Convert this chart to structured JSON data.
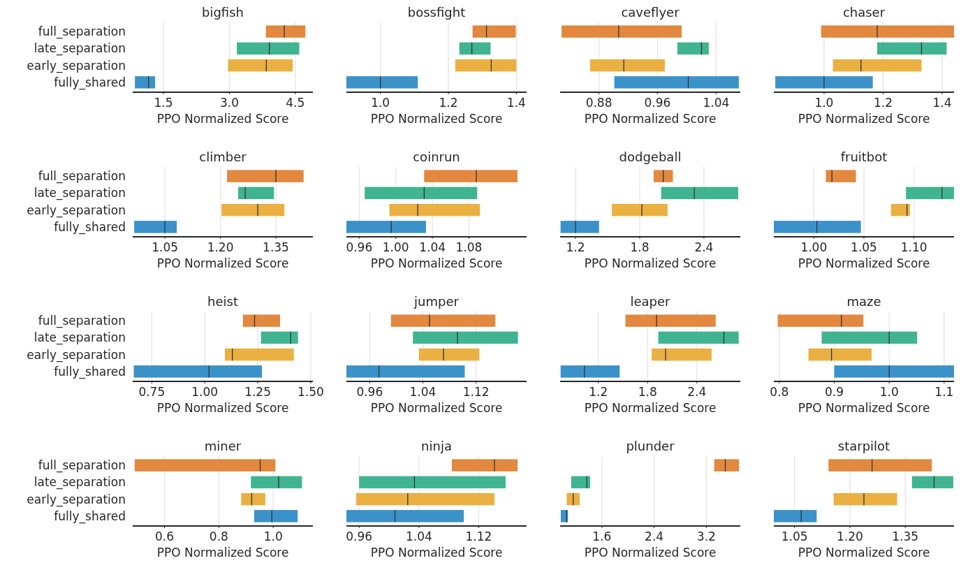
{
  "chart_data": [
    {
      "type": "box",
      "title": "bigfish",
      "xlabel": "PPO Normalized Score",
      "orientation": "horizontal",
      "grid": "x",
      "categories": [
        "full_separation",
        "late_separation",
        "early_separation",
        "fully_shared"
      ],
      "colors": [
        "#e2883f",
        "#40b491",
        "#ebb042",
        "#3b92c8"
      ],
      "xlim": [
        0.8,
        4.9
      ],
      "xticks": [
        1.5,
        {
          "value": 3,
          "label": "3.0"
        },
        4.5
      ],
      "boxes": [
        {
          "low": 3.83,
          "q1": 3.83,
          "median": 4.25,
          "q3": 4.73,
          "high": 4.73
        },
        {
          "low": 3.17,
          "q1": 3.17,
          "median": 3.91,
          "q3": 4.59,
          "high": 4.59
        },
        {
          "low": 2.97,
          "q1": 2.97,
          "median": 3.84,
          "q3": 4.44,
          "high": 4.44
        },
        {
          "low": 0.85,
          "q1": 0.85,
          "median": 1.16,
          "q3": 1.31,
          "high": 1.31
        }
      ]
    },
    {
      "type": "box",
      "title": "bossfight",
      "xlabel": "PPO Normalized Score",
      "orientation": "horizontal",
      "grid": "x",
      "tick_labels": "x",
      "categories": [
        null,
        null,
        null,
        null
      ],
      "colors": [
        "#e2883f",
        "#40b491",
        "#ebb042",
        "#3b92c8"
      ],
      "xlim": [
        0.9,
        1.43
      ],
      "xticks": [
        {
          "value": 1,
          "label": "1.0"
        },
        1.2,
        1.4
      ],
      "boxes": [
        {
          "low": 1.271,
          "q1": 1.271,
          "median": 1.312,
          "q3": 1.398,
          "high": 1.398
        },
        {
          "low": 1.232,
          "q1": 1.232,
          "median": 1.269,
          "q3": 1.324,
          "high": 1.324
        },
        {
          "low": 1.22,
          "q1": 1.22,
          "median": 1.326,
          "q3": 1.4,
          "high": 1.4
        },
        {
          "low": 0.9,
          "q1": 0.9,
          "median": 1.0,
          "q3": 1.11,
          "high": 1.11
        }
      ]
    },
    {
      "type": "box",
      "title": "caveflyer",
      "xlabel": "PPO Normalized Score",
      "orientation": "horizontal",
      "grid": "x",
      "tick_labels": "x",
      "categories": [
        null,
        null,
        null,
        null
      ],
      "colors": [
        "#e2883f",
        "#40b491",
        "#ebb042",
        "#3b92c8"
      ],
      "xlim": [
        0.827,
        1.073
      ],
      "xticks": [
        0.88,
        0.96,
        1.04
      ],
      "boxes": [
        {
          "low": 0.829,
          "q1": 0.829,
          "median": 0.907,
          "q3": 0.993,
          "high": 0.993
        },
        {
          "low": 0.987,
          "q1": 0.987,
          "median": 1.02,
          "q3": 1.03,
          "high": 1.03
        },
        {
          "low": 0.868,
          "q1": 0.868,
          "median": 0.914,
          "q3": 0.97,
          "high": 0.97
        },
        {
          "low": 0.901,
          "q1": 0.901,
          "median": 1.002,
          "q3": 1.071,
          "high": 1.071
        }
      ]
    },
    {
      "type": "box",
      "title": "chaser",
      "xlabel": "PPO Normalized Score",
      "orientation": "horizontal",
      "grid": "x",
      "tick_labels": "x",
      "categories": [
        null,
        null,
        null,
        null
      ],
      "colors": [
        "#e2883f",
        "#40b491",
        "#ebb042",
        "#3b92c8"
      ],
      "xlim": [
        0.83,
        1.44
      ],
      "xticks": [
        {
          "value": 1,
          "label": "1.0"
        },
        1.2,
        1.4
      ],
      "boxes": [
        {
          "low": 0.99,
          "q1": 0.99,
          "median": 1.18,
          "q3": 1.44,
          "high": 1.44
        },
        {
          "low": 1.18,
          "q1": 1.18,
          "median": 1.33,
          "q3": 1.415,
          "high": 1.415
        },
        {
          "low": 1.03,
          "q1": 1.03,
          "median": 1.125,
          "q3": 1.33,
          "high": 1.33
        },
        {
          "low": 0.835,
          "q1": 0.835,
          "median": 1.0,
          "q3": 1.165,
          "high": 1.165
        }
      ]
    },
    {
      "type": "box",
      "title": "climber",
      "xlabel": "PPO Normalized Score",
      "orientation": "horizontal",
      "grid": "x",
      "categories": [
        "full_separation",
        "late_separation",
        "early_separation",
        "fully_shared"
      ],
      "colors": [
        "#e2883f",
        "#40b491",
        "#ebb042",
        "#3b92c8"
      ],
      "xlim": [
        0.963,
        1.45
      ],
      "xticks": [
        1.05,
        {
          "value": 1.2,
          "label": "1.20"
        },
        1.35
      ],
      "boxes": [
        {
          "low": 1.218,
          "q1": 1.218,
          "median": 1.35,
          "q3": 1.425,
          "high": 1.425
        },
        {
          "low": 1.248,
          "q1": 1.248,
          "median": 1.267,
          "q3": 1.345,
          "high": 1.345
        },
        {
          "low": 1.203,
          "q1": 1.203,
          "median": 1.301,
          "q3": 1.373,
          "high": 1.373
        },
        {
          "low": 0.967,
          "q1": 0.967,
          "median": 1.05,
          "q3": 1.082,
          "high": 1.082
        }
      ]
    },
    {
      "type": "box",
      "title": "coinrun",
      "xlabel": "PPO Normalized Score",
      "orientation": "horizontal",
      "grid": "x",
      "tick_labels": "x",
      "categories": [
        null,
        null,
        null,
        null
      ],
      "colors": [
        "#e2883f",
        "#40b491",
        "#ebb042",
        "#3b92c8"
      ],
      "xlim": [
        0.946,
        1.143
      ],
      "xticks": [
        0.96,
        {
          "value": 1,
          "label": "1.00"
        },
        1.04,
        1.08
      ],
      "boxes": [
        {
          "low": 1.031,
          "q1": 1.031,
          "median": 1.088,
          "q3": 1.133,
          "high": 1.133
        },
        {
          "low": 0.966,
          "q1": 0.966,
          "median": 1.031,
          "q3": 1.089,
          "high": 1.089
        },
        {
          "low": 0.993,
          "q1": 0.993,
          "median": 1.024,
          "q3": 1.092,
          "high": 1.092
        },
        {
          "low": 0.946,
          "q1": 0.946,
          "median": 0.995,
          "q3": 1.033,
          "high": 1.033
        }
      ]
    },
    {
      "type": "box",
      "title": "dodgeball",
      "xlabel": "PPO Normalized Score",
      "orientation": "horizontal",
      "grid": "x",
      "tick_labels": "x",
      "categories": [
        null,
        null,
        null,
        null
      ],
      "colors": [
        "#e2883f",
        "#40b491",
        "#ebb042",
        "#3b92c8"
      ],
      "xlim": [
        1.056,
        2.74
      ],
      "xticks": [
        1.2,
        1.8,
        2.4
      ],
      "boxes": [
        {
          "low": 1.93,
          "q1": 1.93,
          "median": 2.02,
          "q3": 2.11,
          "high": 2.11
        },
        {
          "low": 2.0,
          "q1": 2.0,
          "median": 2.31,
          "q3": 2.72,
          "high": 2.72
        },
        {
          "low": 1.54,
          "q1": 1.54,
          "median": 1.82,
          "q3": 2.06,
          "high": 2.06
        },
        {
          "low": 1.06,
          "q1": 1.06,
          "median": 1.2,
          "q3": 1.42,
          "high": 1.42
        }
      ]
    },
    {
      "type": "box",
      "title": "fruitbot",
      "xlabel": "PPO Normalized Score",
      "orientation": "horizontal",
      "grid": "x",
      "tick_labels": "x",
      "categories": [
        null,
        null,
        null,
        null
      ],
      "colors": [
        "#e2883f",
        "#40b491",
        "#ebb042",
        "#3b92c8"
      ],
      "xlim": [
        0.96,
        1.14
      ],
      "xticks": [
        {
          "value": 1,
          "label": "1.00"
        },
        1.05,
        {
          "value": 1.1,
          "label": "1.10"
        }
      ],
      "boxes": [
        {
          "low": 1.012,
          "q1": 1.012,
          "median": 1.018,
          "q3": 1.042,
          "high": 1.042
        },
        {
          "low": 1.092,
          "q1": 1.092,
          "median": 1.128,
          "q3": 1.14,
          "high": 1.14
        },
        {
          "low": 1.077,
          "q1": 1.077,
          "median": 1.093,
          "q3": 1.096,
          "high": 1.096
        },
        {
          "low": 0.96,
          "q1": 0.96,
          "median": 1.003,
          "q3": 1.047,
          "high": 1.047
        }
      ]
    },
    {
      "type": "box",
      "title": "heist",
      "xlabel": "PPO Normalized Score",
      "orientation": "horizontal",
      "grid": "x",
      "categories": [
        "full_separation",
        "late_separation",
        "early_separation",
        "fully_shared"
      ],
      "colors": [
        "#e2883f",
        "#40b491",
        "#ebb042",
        "#3b92c8"
      ],
      "xlim": [
        0.66,
        1.51
      ],
      "xticks": [
        0.75,
        {
          "value": 1,
          "label": "1.00"
        },
        1.25,
        {
          "value": 1.5,
          "label": "1.50"
        }
      ],
      "boxes": [
        {
          "low": 1.18,
          "q1": 1.18,
          "median": 1.235,
          "q3": 1.355,
          "high": 1.355
        },
        {
          "low": 1.265,
          "q1": 1.265,
          "median": 1.405,
          "q3": 1.44,
          "high": 1.44
        },
        {
          "low": 1.095,
          "q1": 1.095,
          "median": 1.13,
          "q3": 1.42,
          "high": 1.42
        },
        {
          "low": 0.665,
          "q1": 0.665,
          "median": 1.02,
          "q3": 1.27,
          "high": 1.27
        }
      ]
    },
    {
      "type": "box",
      "title": "jumper",
      "xlabel": "PPO Normalized Score",
      "orientation": "horizontal",
      "grid": "x",
      "tick_labels": "x",
      "categories": [
        null,
        null,
        null,
        null
      ],
      "colors": [
        "#e2883f",
        "#40b491",
        "#ebb042",
        "#3b92c8"
      ],
      "xlim": [
        0.925,
        1.196
      ],
      "xticks": [
        0.96,
        1.04,
        1.12
      ],
      "boxes": [
        {
          "low": 0.992,
          "q1": 0.992,
          "median": 1.05,
          "q3": 1.149,
          "high": 1.149
        },
        {
          "low": 1.025,
          "q1": 1.025,
          "median": 1.092,
          "q3": 1.183,
          "high": 1.183
        },
        {
          "low": 1.034,
          "q1": 1.034,
          "median": 1.071,
          "q3": 1.125,
          "high": 1.125
        },
        {
          "low": 0.925,
          "q1": 0.925,
          "median": 0.974,
          "q3": 1.103,
          "high": 1.103
        }
      ]
    },
    {
      "type": "box",
      "title": "leaper",
      "xlabel": "PPO Normalized Score",
      "orientation": "horizontal",
      "grid": "x",
      "tick_labels": "x",
      "categories": [
        null,
        null,
        null,
        null
      ],
      "colors": [
        "#e2883f",
        "#40b491",
        "#ebb042",
        "#3b92c8"
      ],
      "xlim": [
        0.734,
        2.93
      ],
      "xticks": [
        1.2,
        1.8,
        2.4
      ],
      "boxes": [
        {
          "low": 1.53,
          "q1": 1.53,
          "median": 1.91,
          "q3": 2.63,
          "high": 2.63
        },
        {
          "low": 1.93,
          "q1": 1.93,
          "median": 2.73,
          "q3": 2.91,
          "high": 2.91
        },
        {
          "low": 1.85,
          "q1": 1.85,
          "median": 2.02,
          "q3": 2.58,
          "high": 2.58
        },
        {
          "low": 0.74,
          "q1": 0.74,
          "median": 1.03,
          "q3": 1.46,
          "high": 1.46
        }
      ]
    },
    {
      "type": "box",
      "title": "maze",
      "xlabel": "PPO Normalized Score",
      "orientation": "horizontal",
      "grid": "x",
      "tick_labels": "x",
      "categories": [
        null,
        null,
        null,
        null
      ],
      "colors": [
        "#e2883f",
        "#40b491",
        "#ebb042",
        "#3b92c8"
      ],
      "xlim": [
        0.79,
        1.118
      ],
      "xticks": [
        0.8,
        0.9,
        {
          "value": 1,
          "label": "1.0"
        },
        1.1
      ],
      "boxes": [
        {
          "low": 0.797,
          "q1": 0.797,
          "median": 0.913,
          "q3": 0.953,
          "high": 0.953
        },
        {
          "low": 0.877,
          "q1": 0.877,
          "median": 1.0,
          "q3": 1.051,
          "high": 1.051
        },
        {
          "low": 0.853,
          "q1": 0.853,
          "median": 0.895,
          "q3": 0.968,
          "high": 0.968
        },
        {
          "low": 0.9,
          "q1": 0.9,
          "median": 1.0,
          "q3": 1.118,
          "high": 1.118
        }
      ]
    },
    {
      "type": "box",
      "title": "miner",
      "xlabel": "PPO Normalized Score",
      "orientation": "horizontal",
      "grid": "x",
      "categories": [
        "full_separation",
        "late_separation",
        "early_separation",
        "fully_shared"
      ],
      "colors": [
        "#e2883f",
        "#40b491",
        "#ebb042",
        "#3b92c8"
      ],
      "xlim": [
        0.483,
        1.146
      ],
      "xticks": [
        0.6,
        0.8,
        {
          "value": 1,
          "label": "1.0"
        }
      ],
      "boxes": [
        {
          "low": 0.49,
          "q1": 0.49,
          "median": 0.952,
          "q3": 1.008,
          "high": 1.008
        },
        {
          "low": 0.918,
          "q1": 0.918,
          "median": 1.02,
          "q3": 1.106,
          "high": 1.106
        },
        {
          "low": 0.882,
          "q1": 0.882,
          "median": 0.921,
          "q3": 0.971,
          "high": 0.971
        },
        {
          "low": 0.93,
          "q1": 0.93,
          "median": 0.995,
          "q3": 1.09,
          "high": 1.09
        }
      ]
    },
    {
      "type": "box",
      "title": "ninja",
      "xlabel": "PPO Normalized Score",
      "orientation": "horizontal",
      "grid": "x",
      "tick_labels": "x",
      "categories": [
        null,
        null,
        null,
        null
      ],
      "colors": [
        "#e2883f",
        "#40b491",
        "#ebb042",
        "#3b92c8"
      ],
      "xlim": [
        0.943,
        1.184
      ],
      "xticks": [
        0.96,
        1.04,
        1.12
      ],
      "boxes": [
        {
          "low": 1.084,
          "q1": 1.084,
          "median": 1.141,
          "q3": 1.172,
          "high": 1.172
        },
        {
          "low": 0.96,
          "q1": 0.96,
          "median": 1.034,
          "q3": 1.156,
          "high": 1.156
        },
        {
          "low": 0.956,
          "q1": 0.956,
          "median": 1.025,
          "q3": 1.141,
          "high": 1.141
        },
        {
          "low": 0.943,
          "q1": 0.943,
          "median": 1.008,
          "q3": 1.1,
          "high": 1.1
        }
      ]
    },
    {
      "type": "box",
      "title": "plunder",
      "xlabel": "PPO Normalized Score",
      "orientation": "horizontal",
      "grid": "x",
      "tick_labels": "x",
      "categories": [
        null,
        null,
        null,
        null
      ],
      "colors": [
        "#e2883f",
        "#40b491",
        "#ebb042",
        "#3b92c8"
      ],
      "xlim": [
        0.96,
        3.72
      ],
      "xticks": [
        1.6,
        2.4,
        3.2
      ],
      "boxes": [
        {
          "low": 3.32,
          "q1": 3.32,
          "median": 3.49,
          "q3": 3.7,
          "high": 3.7
        },
        {
          "low": 1.13,
          "q1": 1.13,
          "median": 1.37,
          "q3": 1.42,
          "high": 1.42
        },
        {
          "low": 1.06,
          "q1": 1.06,
          "median": 1.16,
          "q3": 1.26,
          "high": 1.26
        },
        {
          "low": 0.97,
          "q1": 0.97,
          "median": 1.06,
          "q3": 1.08,
          "high": 1.08
        }
      ]
    },
    {
      "type": "box",
      "title": "starpilot",
      "xlabel": "PPO Normalized Score",
      "orientation": "horizontal",
      "grid": "x",
      "tick_labels": "x",
      "categories": [
        null,
        null,
        null,
        null
      ],
      "colors": [
        "#e2883f",
        "#40b491",
        "#ebb042",
        "#3b92c8"
      ],
      "xlim": [
        0.994,
        1.482
      ],
      "xticks": [
        1.05,
        {
          "value": 1.2,
          "label": "1.20"
        },
        1.35
      ],
      "boxes": [
        {
          "low": 1.142,
          "q1": 1.142,
          "median": 1.26,
          "q3": 1.422,
          "high": 1.422
        },
        {
          "low": 1.368,
          "q1": 1.368,
          "median": 1.428,
          "q3": 1.48,
          "high": 1.48
        },
        {
          "low": 1.156,
          "q1": 1.156,
          "median": 1.238,
          "q3": 1.328,
          "high": 1.328
        },
        {
          "low": 0.994,
          "q1": 0.994,
          "median": 1.068,
          "q3": 1.11,
          "high": 1.11
        }
      ]
    }
  ]
}
